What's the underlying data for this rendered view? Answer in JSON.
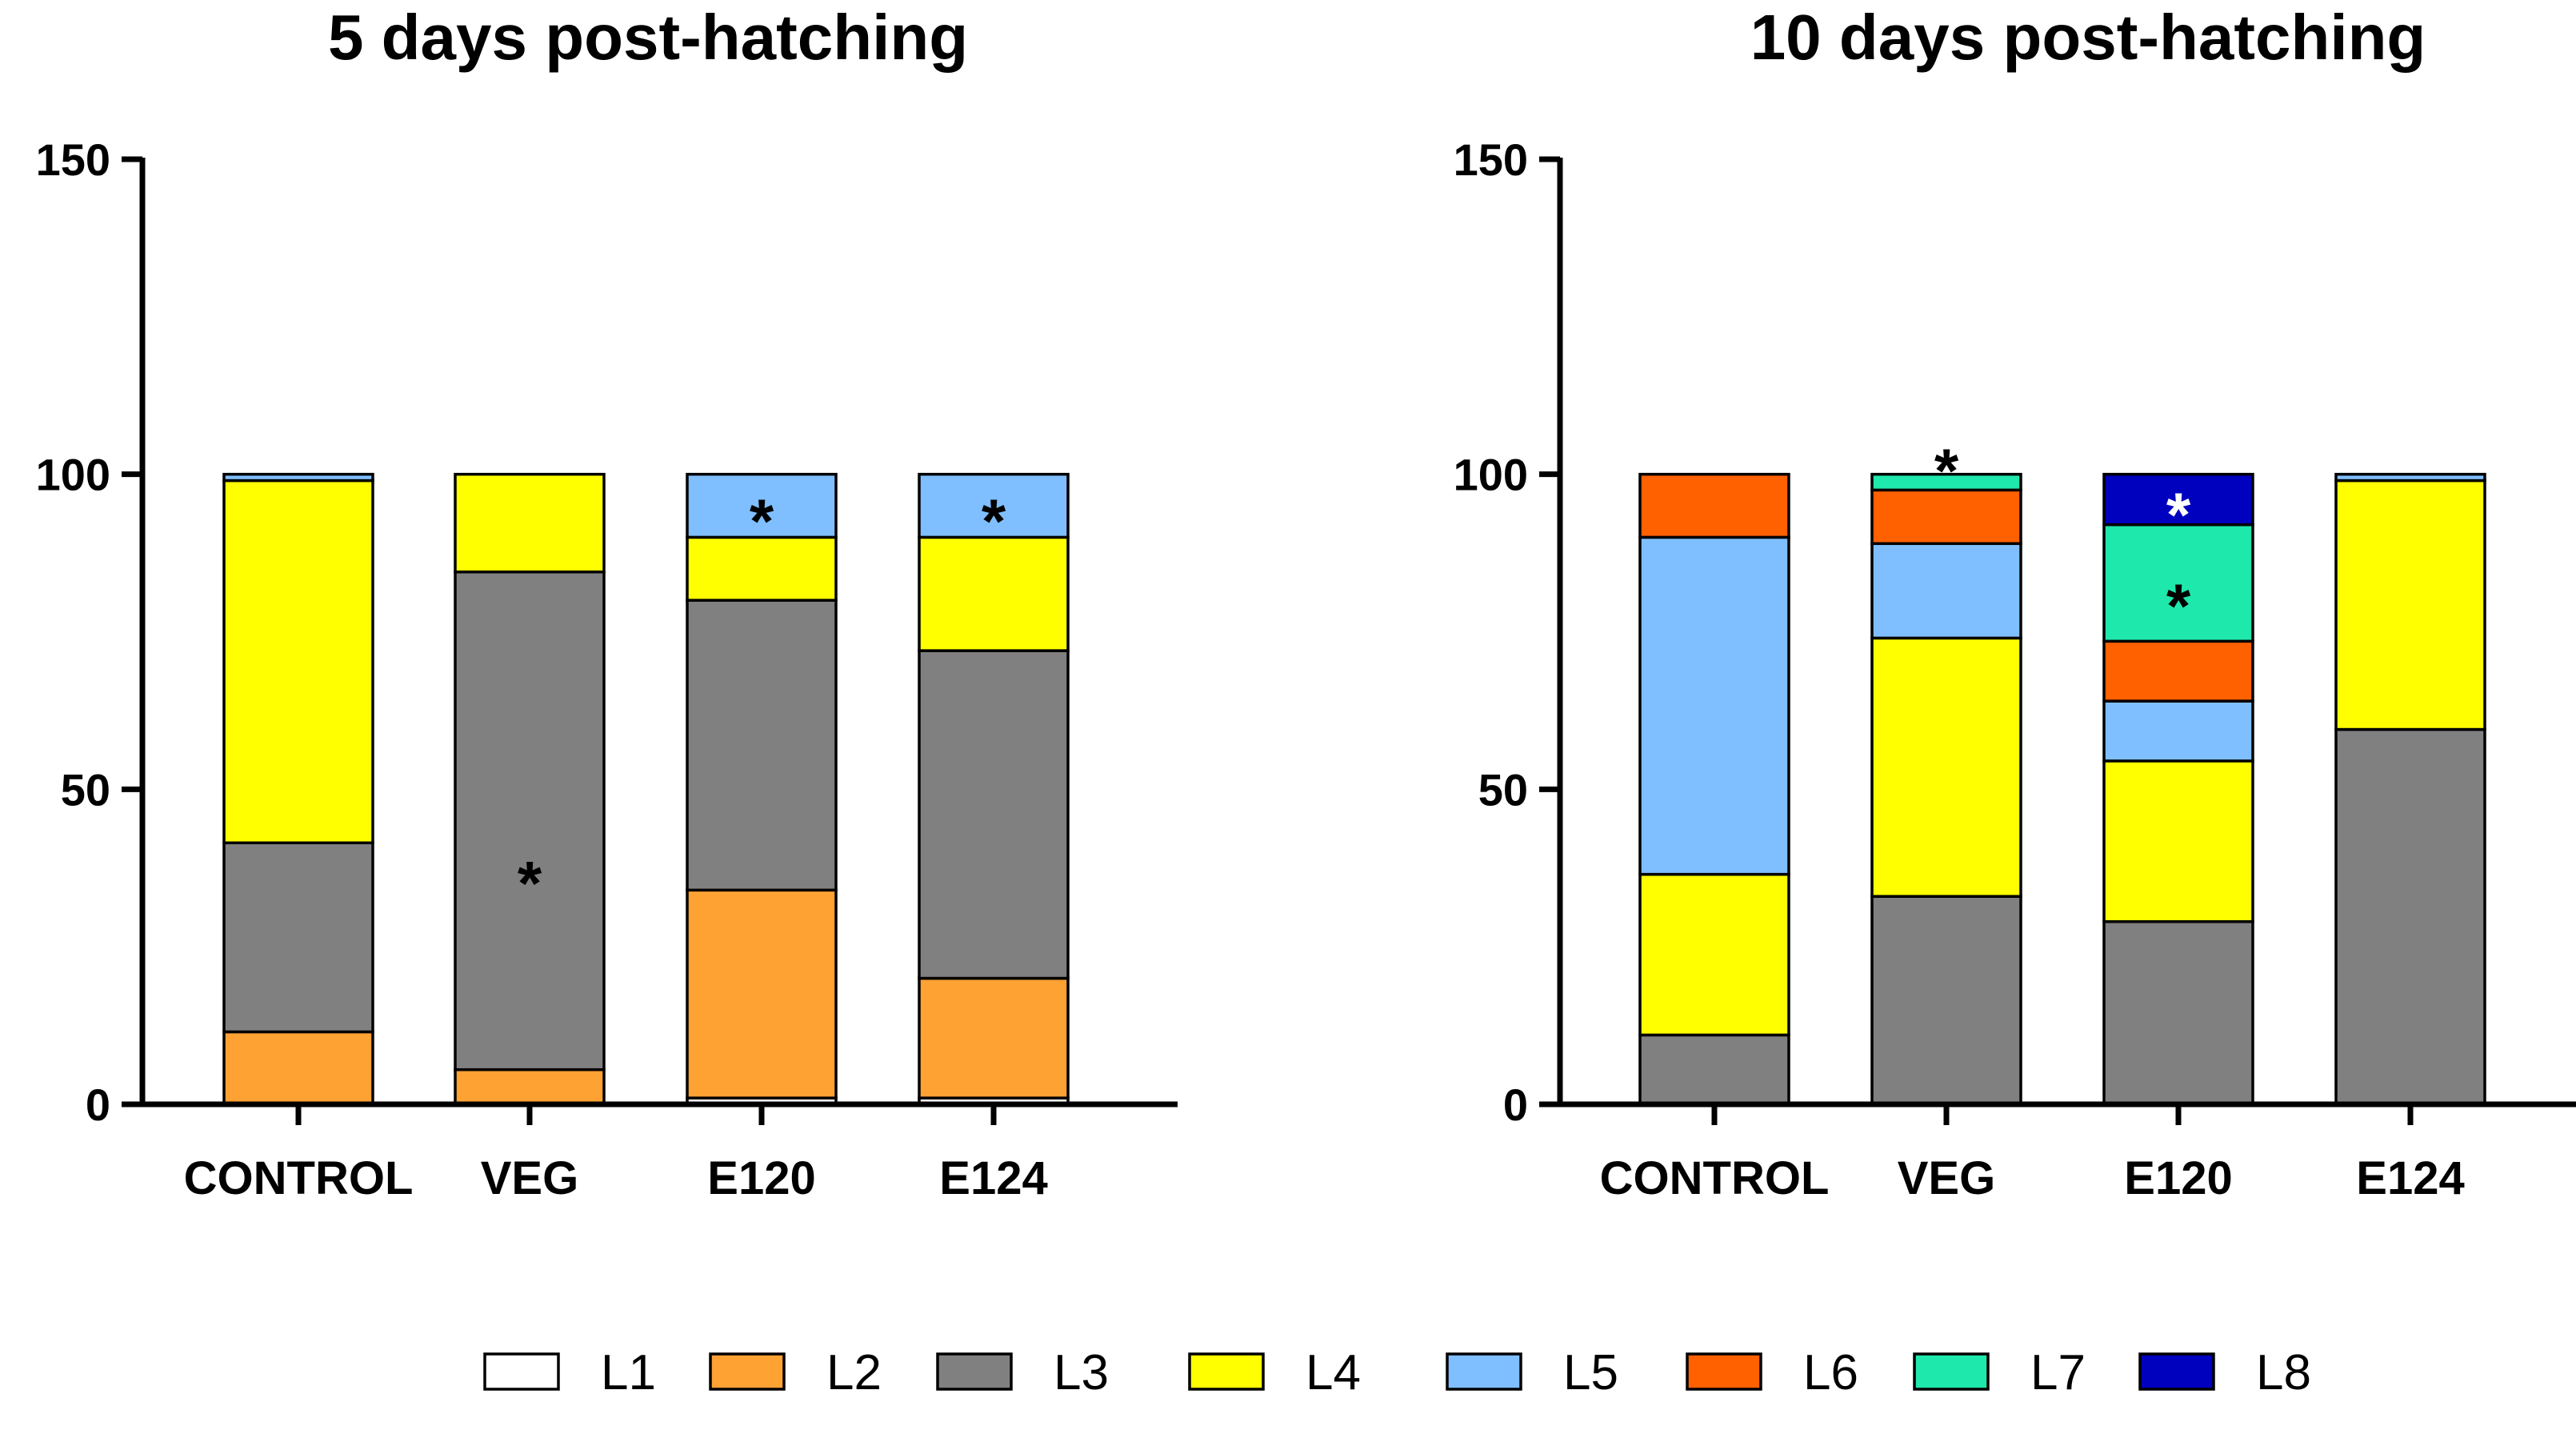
{
  "chart_data": {
    "type": "bar",
    "stacked": true,
    "series_names": [
      "L1",
      "L2",
      "L3",
      "L4",
      "L5",
      "L6",
      "L7",
      "L8"
    ],
    "colors": {
      "L1": "#ffffff",
      "L2": "#ffa234",
      "L3": "#808080",
      "L4": "#ffff00",
      "L5": "#7fbfff",
      "L6": "#ff6000",
      "L7": "#1fe8ac",
      "L8": "#0000bf"
    },
    "panels": [
      {
        "title": "5 days post-hatching",
        "categories": [
          "CONTROL",
          "VEG",
          "E120",
          "E124"
        ],
        "ylim": [
          0,
          150
        ],
        "yticks": [
          0,
          50,
          100,
          150
        ],
        "series": [
          {
            "name": "L1",
            "values": [
              0,
              0,
              1,
              1
            ]
          },
          {
            "name": "L2",
            "values": [
              11.5,
              5.5,
              33,
              19
            ]
          },
          {
            "name": "L3",
            "values": [
              30,
              79,
              46,
              52
            ]
          },
          {
            "name": "L4",
            "values": [
              57.5,
              15.5,
              10,
              18
            ]
          },
          {
            "name": "L5",
            "values": [
              1,
              0,
              10,
              10
            ]
          },
          {
            "name": "L6",
            "values": [
              0,
              0,
              0,
              0
            ]
          },
          {
            "name": "L7",
            "values": [
              0,
              0,
              0,
              0
            ]
          },
          {
            "name": "L8",
            "values": [
              0,
              0,
              0,
              0
            ]
          }
        ],
        "annotations": [
          {
            "category": "VEG",
            "text": "*",
            "y": 36,
            "color": "#000000"
          },
          {
            "category": "E120",
            "text": "*",
            "y": 93.5,
            "color": "#000000"
          },
          {
            "category": "E124",
            "text": "*",
            "y": 93.5,
            "color": "#000000"
          }
        ]
      },
      {
        "title": "10 days post-hatching",
        "categories": [
          "CONTROL",
          "VEG",
          "E120",
          "E124"
        ],
        "ylim": [
          0,
          150
        ],
        "yticks": [
          0,
          50,
          100,
          150
        ],
        "series": [
          {
            "name": "L1",
            "values": [
              0,
              0,
              0,
              0
            ]
          },
          {
            "name": "L2",
            "values": [
              0,
              0,
              0,
              0
            ]
          },
          {
            "name": "L3",
            "values": [
              11,
              33,
              29,
              59.5
            ]
          },
          {
            "name": "L4",
            "values": [
              25.5,
              41,
              25.5,
              39.5
            ]
          },
          {
            "name": "L5",
            "values": [
              53.5,
              15,
              9.5,
              1
            ]
          },
          {
            "name": "L6",
            "values": [
              10,
              8.5,
              9.5,
              0
            ]
          },
          {
            "name": "L7",
            "values": [
              0,
              2.5,
              18.5,
              0
            ]
          },
          {
            "name": "L8",
            "values": [
              0,
              0,
              8,
              0
            ]
          }
        ],
        "annotations": [
          {
            "category": "VEG",
            "text": "*",
            "y": 101.5,
            "color": "#000000"
          },
          {
            "category": "E120",
            "text": "*",
            "y": 94.5,
            "color": "#ffffff"
          },
          {
            "category": "E120",
            "text": "*",
            "y": 80,
            "color": "#000000"
          }
        ]
      }
    ],
    "legend": {
      "position": "bottom",
      "entries": [
        "L1",
        "L2",
        "L3",
        "L4",
        "L5",
        "L6",
        "L7",
        "L8"
      ]
    }
  }
}
